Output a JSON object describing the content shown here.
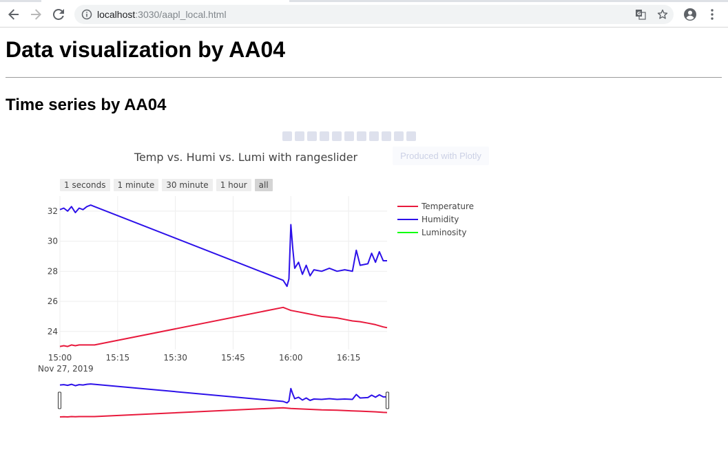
{
  "browser": {
    "url_host": "localhost",
    "url_rest": ":3030/aapl_local.html",
    "icons": [
      "back-arrow-icon",
      "forward-arrow-icon",
      "reload-icon",
      "info-icon",
      "translate-icon",
      "star-icon",
      "account-icon",
      "menu-icon"
    ]
  },
  "page": {
    "title": "Data visualization by AA04",
    "subtitle": "Time series by AA04"
  },
  "modebar": {
    "tooltip": "Produced with Plotly"
  },
  "range_selector": {
    "buttons": [
      "1 seconds",
      "1 minute",
      "30 minute",
      "1 hour",
      "all"
    ],
    "active": "all"
  },
  "colors": {
    "temperature": "#e8193c",
    "humidity": "#2c10e9",
    "luminosity": "#00ff00",
    "text": "#444444"
  },
  "chart_data": {
    "type": "line",
    "title": "Temp vs. Humi vs. Lumi with rangeslider",
    "x_start_label": "Nov 27, 2019",
    "x_ticks": [
      "15:00",
      "15:15",
      "15:30",
      "15:45",
      "16:00",
      "16:15"
    ],
    "y_ticks": [
      24,
      26,
      28,
      30,
      32
    ],
    "xlim": [
      "2019-11-27 15:00",
      "2019-11-27 16:25"
    ],
    "ylim": [
      22.8,
      33.0
    ],
    "grid": true,
    "legend_position": "top-right",
    "rangeslider": true,
    "series": [
      {
        "name": "Temperature",
        "color": "#e8193c",
        "x": [
          "2019-11-27 15:00",
          "2019-11-27 15:01",
          "2019-11-27 15:02",
          "2019-11-27 15:03",
          "2019-11-27 15:04",
          "2019-11-27 15:05",
          "2019-11-27 15:06",
          "2019-11-27 15:07",
          "2019-11-27 15:08",
          "2019-11-27 15:09",
          "2019-11-27 15:58",
          "2019-11-27 15:59",
          "2019-11-27 16:00",
          "2019-11-27 16:02",
          "2019-11-27 16:04",
          "2019-11-27 16:06",
          "2019-11-27 16:08",
          "2019-11-27 16:10",
          "2019-11-27 16:12",
          "2019-11-27 16:14",
          "2019-11-27 16:16",
          "2019-11-27 16:18",
          "2019-11-27 16:20",
          "2019-11-27 16:22",
          "2019-11-27 16:24",
          "2019-11-27 16:25"
        ],
        "y": [
          23.0,
          23.05,
          23.0,
          23.1,
          23.05,
          23.1,
          23.1,
          23.1,
          23.1,
          23.1,
          25.6,
          25.5,
          25.4,
          25.3,
          25.2,
          25.1,
          25.0,
          24.95,
          24.9,
          24.8,
          24.7,
          24.65,
          24.55,
          24.45,
          24.3,
          24.25
        ]
      },
      {
        "name": "Humidity",
        "color": "#2c10e9",
        "x": [
          "2019-11-27 15:00",
          "2019-11-27 15:01",
          "2019-11-27 15:02",
          "2019-11-27 15:03",
          "2019-11-27 15:04",
          "2019-11-27 15:05",
          "2019-11-27 15:06",
          "2019-11-27 15:07",
          "2019-11-27 15:08",
          "2019-11-27 15:09",
          "2019-11-27 15:58",
          "2019-11-27 15:59",
          "2019-11-27 15:59.5",
          "2019-11-27 16:00",
          "2019-11-27 16:00.5",
          "2019-11-27 16:01",
          "2019-11-27 16:02",
          "2019-11-27 16:03",
          "2019-11-27 16:04",
          "2019-11-27 16:05",
          "2019-11-27 16:06",
          "2019-11-27 16:08",
          "2019-11-27 16:10",
          "2019-11-27 16:12",
          "2019-11-27 16:14",
          "2019-11-27 16:16",
          "2019-11-27 16:17",
          "2019-11-27 16:18",
          "2019-11-27 16:20",
          "2019-11-27 16:21",
          "2019-11-27 16:22",
          "2019-11-27 16:23",
          "2019-11-27 16:24",
          "2019-11-27 16:25"
        ],
        "y": [
          32.1,
          32.2,
          32.0,
          32.3,
          31.9,
          32.2,
          32.1,
          32.3,
          32.4,
          32.3,
          27.4,
          27.0,
          27.5,
          31.1,
          29.5,
          28.2,
          28.6,
          27.8,
          28.4,
          27.7,
          28.1,
          28.0,
          28.2,
          28.0,
          28.1,
          28.0,
          29.4,
          28.4,
          28.5,
          29.2,
          28.6,
          29.3,
          28.7,
          28.7
        ]
      },
      {
        "name": "Luminosity",
        "color": "#00ff00",
        "x": [],
        "y": []
      }
    ]
  }
}
